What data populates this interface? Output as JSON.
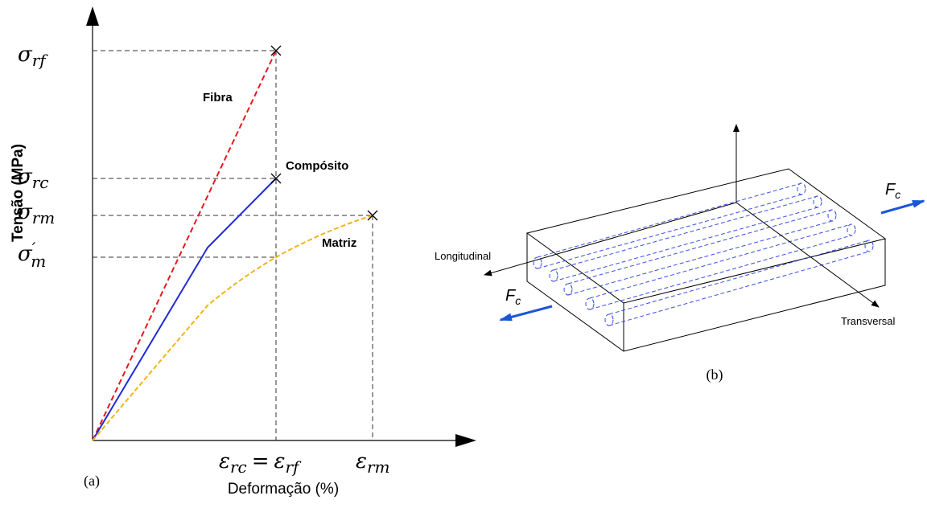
{
  "figure_a": {
    "y_levels": [
      {
        "symbol": "σ",
        "sub": "rf"
      },
      {
        "symbol": "σ",
        "sub": "rc"
      },
      {
        "symbol": "σ",
        "sub": "rm"
      },
      {
        "symbol": "σ",
        "prime": "′",
        "sub": "m"
      }
    ],
    "x_levels": [
      {
        "left": {
          "symbol": "ε",
          "sub": "rc"
        },
        "eq": "=",
        "right": {
          "symbol": "ε",
          "sub": "rf"
        }
      },
      {
        "symbol": "ε",
        "sub": "rm"
      }
    ],
    "curves": [
      "Fibra",
      "Compósito",
      "Matriz"
    ],
    "y_label": "Tensão (MPa)",
    "x_label": "Deformação (%)",
    "caption": "(a)"
  },
  "figure_b": {
    "longitudinal": "Longitudinal",
    "transversal": "Transversal",
    "force_right": {
      "symbol": "F",
      "sub": "c"
    },
    "force_left": {
      "symbol": "F",
      "sub": "c"
    },
    "caption": "(b)"
  }
}
